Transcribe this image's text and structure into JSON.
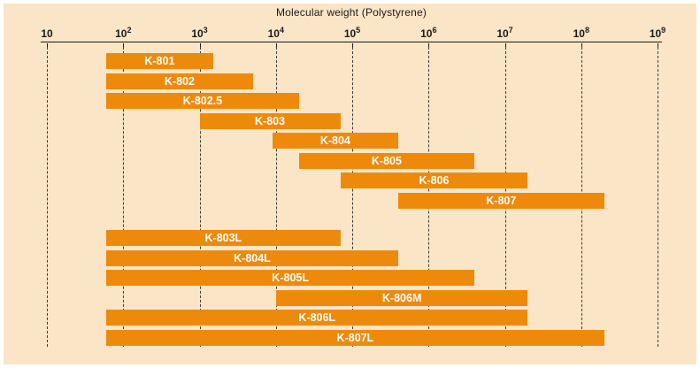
{
  "panel": {
    "background": "#FAE5C6",
    "frame_background": "#ffffff"
  },
  "chart_data": {
    "type": "bar",
    "subtype": "horizontal_log_range_bars",
    "title": "Molecular weight (Polystyrene)",
    "bar_color": "#EE8A0B",
    "bar_label_color": "#FFFFFF",
    "gridline_style": "dashed",
    "x_axis": {
      "scale": "log10",
      "min": 10,
      "max": 1000000000,
      "tick_labels": [
        "10",
        "10²",
        "10³",
        "10⁴",
        "10⁵",
        "10⁶",
        "10⁷",
        "10⁸",
        "10⁹"
      ],
      "tick_exponents": [
        1,
        2,
        3,
        4,
        5,
        6,
        7,
        8,
        9
      ]
    },
    "bars": [
      {
        "label": "K-801",
        "mw_min": 60,
        "mw_max": 1500,
        "group": 1
      },
      {
        "label": "K-802",
        "mw_min": 60,
        "mw_max": 5000,
        "group": 1
      },
      {
        "label": "K-802.5",
        "mw_min": 60,
        "mw_max": 20000,
        "group": 1
      },
      {
        "label": "K-803",
        "mw_min": 1000,
        "mw_max": 70000,
        "group": 1
      },
      {
        "label": "K-804",
        "mw_min": 9000,
        "mw_max": 400000,
        "group": 1
      },
      {
        "label": "K-805",
        "mw_min": 20000,
        "mw_max": 4000000,
        "group": 1
      },
      {
        "label": "K-806",
        "mw_min": 70000,
        "mw_max": 20000000,
        "group": 1
      },
      {
        "label": "K-807",
        "mw_min": 400000,
        "mw_max": 200000000,
        "group": 1
      },
      {
        "label": "K-803L",
        "mw_min": 60,
        "mw_max": 70000,
        "group": 2
      },
      {
        "label": "K-804L",
        "mw_min": 60,
        "mw_max": 400000,
        "group": 2
      },
      {
        "label": "K-805L",
        "mw_min": 60,
        "mw_max": 4000000,
        "group": 2
      },
      {
        "label": "K-806M",
        "mw_min": 10000,
        "mw_max": 20000000,
        "group": 2
      },
      {
        "label": "K-806L",
        "mw_min": 60,
        "mw_max": 20000000,
        "group": 2
      },
      {
        "label": "K-807L",
        "mw_min": 60,
        "mw_max": 200000000,
        "group": 2
      }
    ]
  }
}
